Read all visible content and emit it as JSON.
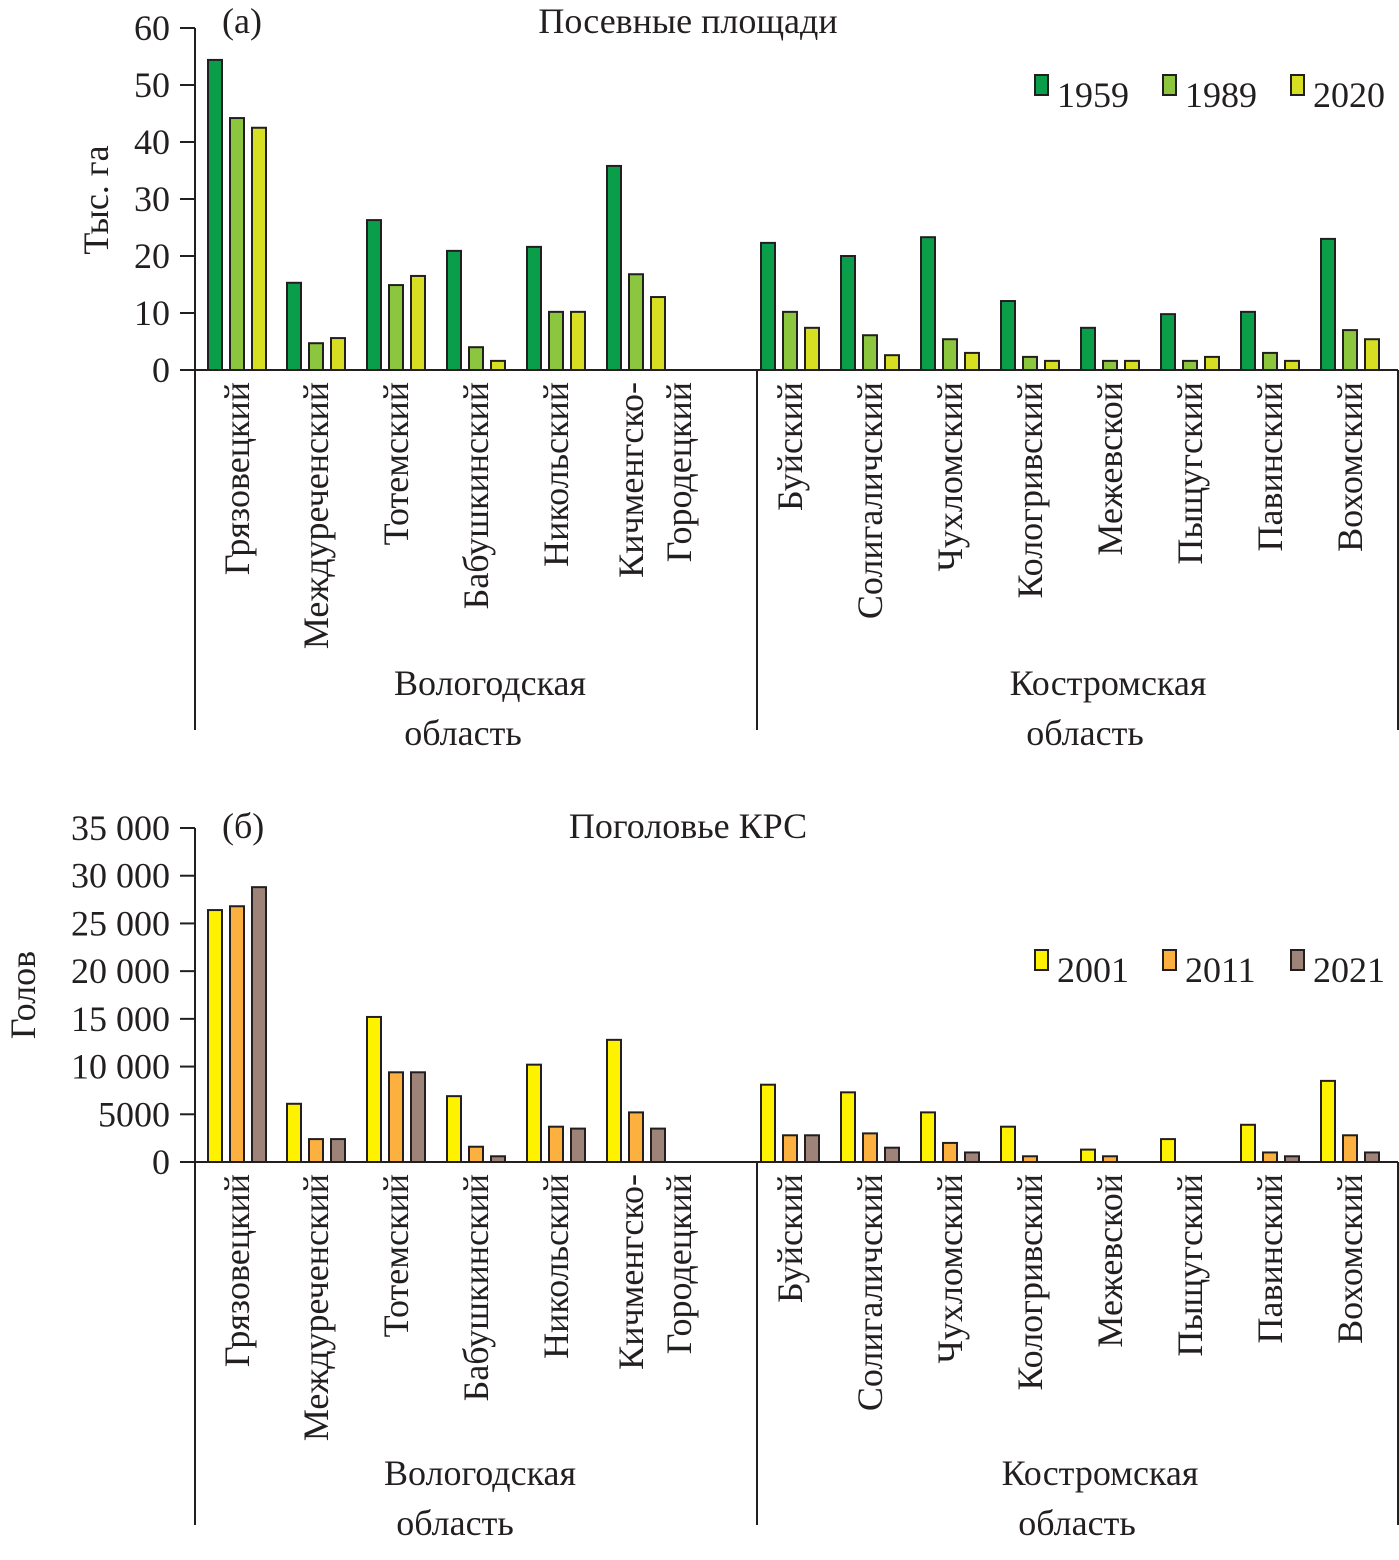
{
  "chart_data": [
    {
      "type": "bar",
      "panel_label": "(а)",
      "title": "Посевные площади",
      "ylabel": "Тыс. га",
      "ylim": [
        0,
        60
      ],
      "yticks": [
        0,
        10,
        20,
        30,
        40,
        50,
        60
      ],
      "ytick_labels": [
        "0",
        "10",
        "20",
        "30",
        "40",
        "50",
        "60"
      ],
      "legend_position": "top-right",
      "groups": [
        {
          "label": [
            "Вологодская",
            "область"
          ],
          "categories": [
            [
              "Грязовецкий"
            ],
            [
              "Междуреченский"
            ],
            [
              "Тотемский"
            ],
            [
              "Бабушкинский"
            ],
            [
              "Никольский"
            ],
            [
              "Кичменгско-",
              "Городецкий"
            ]
          ]
        },
        {
          "label": [
            "Костромская",
            "область"
          ],
          "categories": [
            [
              "Буйский"
            ],
            [
              "Солигаличский"
            ],
            [
              "Чухломский"
            ],
            [
              "Кологривский"
            ],
            [
              "Межевской"
            ],
            [
              "Пыщугский"
            ],
            [
              "Павинский"
            ],
            [
              "Вохомский"
            ]
          ]
        }
      ],
      "series": [
        {
          "name": "1959",
          "color": "#0a9e4a",
          "values": [
            54.4,
            15.3,
            26.3,
            20.9,
            21.6,
            35.8,
            22.3,
            20.0,
            23.3,
            12.1,
            7.4,
            9.8,
            10.2,
            23.0
          ]
        },
        {
          "name": "1989",
          "color": "#8cc63f",
          "values": [
            44.2,
            4.7,
            14.9,
            4.0,
            10.2,
            16.8,
            10.2,
            6.1,
            5.4,
            2.3,
            1.6,
            1.6,
            3.0,
            7.0
          ]
        },
        {
          "name": "2020",
          "color": "#d7df23",
          "values": [
            42.5,
            5.6,
            16.5,
            1.6,
            10.2,
            12.8,
            7.4,
            2.6,
            3.0,
            1.6,
            1.6,
            2.3,
            1.6,
            5.4
          ]
        }
      ]
    },
    {
      "type": "bar",
      "panel_label": "(б)",
      "title": "Поголовье КРС",
      "ylabel": "Голов",
      "ylim": [
        0,
        35000
      ],
      "yticks": [
        0,
        5000,
        10000,
        15000,
        20000,
        25000,
        30000,
        35000
      ],
      "ytick_labels": [
        "0",
        "5000",
        "10 000",
        "15 000",
        "20 000",
        "25 000",
        "30 000",
        "35 000"
      ],
      "legend_position": "top-right",
      "groups": [
        {
          "label": [
            "Вологодская",
            "область"
          ],
          "categories": [
            [
              "Грязовецкий"
            ],
            [
              "Междуреченский"
            ],
            [
              "Тотемский"
            ],
            [
              "Бабушкинский"
            ],
            [
              "Никольский"
            ],
            [
              "Кичменгско-",
              "Городецкий"
            ]
          ]
        },
        {
          "label": [
            "Костромская",
            "область"
          ],
          "categories": [
            [
              "Буйский"
            ],
            [
              "Солигаличский"
            ],
            [
              "Чухломский"
            ],
            [
              "Кологривский"
            ],
            [
              "Межевской"
            ],
            [
              "Пыщугский"
            ],
            [
              "Павинский"
            ],
            [
              "Вохомский"
            ]
          ]
        }
      ],
      "series": [
        {
          "name": "2001",
          "color": "#fff200",
          "values": [
            26400,
            6100,
            15200,
            6900,
            10200,
            12800,
            8100,
            7300,
            5200,
            3700,
            1300,
            2400,
            3900,
            8500
          ]
        },
        {
          "name": "2011",
          "color": "#fbb040",
          "values": [
            26800,
            2400,
            9400,
            1600,
            3700,
            5200,
            2800,
            3000,
            2000,
            600,
            600,
            0,
            1000,
            2800
          ]
        },
        {
          "name": "2021",
          "color": "#9e8478",
          "values": [
            28800,
            2400,
            9400,
            600,
            3500,
            3500,
            2800,
            1500,
            1000,
            0,
            0,
            0,
            600,
            1000
          ]
        }
      ]
    }
  ]
}
